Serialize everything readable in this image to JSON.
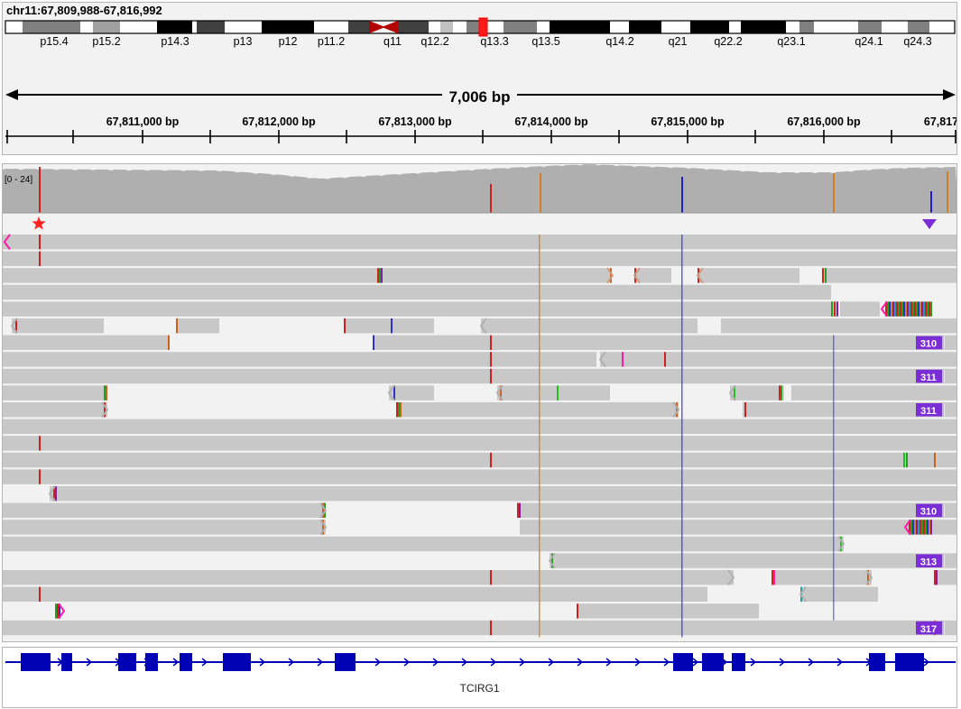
{
  "header": {
    "locus": "chr11:67,809,988-67,816,992",
    "span_label": "7,006 bp"
  },
  "ideogram": {
    "highlight_color": "#ff0000",
    "centromere_color": "#b30000",
    "band_labels": [
      "p15.4",
      "p15.2",
      "p14.3",
      "p13",
      "p12",
      "p11.2",
      "q11",
      "q12.2",
      "q13.3",
      "q13.5",
      "q14.2",
      "q21",
      "q22.2",
      "q23.1",
      "q24.1",
      "q24.3"
    ]
  },
  "ruler": {
    "tick_labels": [
      "67,811,000 bp",
      "67,812,000 bp",
      "67,813,000 bp",
      "67,814,000 bp",
      "67,815,000 bp",
      "67,816,000 bp",
      "67,817"
    ]
  },
  "coverage": {
    "range_label": "[0 - 24]",
    "color": "#afafaf"
  },
  "features": {
    "star_icon": "red-star-icon",
    "star_color": "#ff2222",
    "insertion_marker_icon": "purple-triangle-down-icon",
    "insertion_marker_color": "#7b2ed6"
  },
  "alignments": {
    "read_color": "#c8c8c8",
    "insertion_badges": [
      "310",
      "311",
      "311",
      "310",
      "313",
      "317"
    ],
    "badge_color": "#7b2ed6",
    "clip_color": "#ff1aa8"
  },
  "gene_track": {
    "gene_name": "TCIRG1",
    "color": "#0000b4"
  }
}
